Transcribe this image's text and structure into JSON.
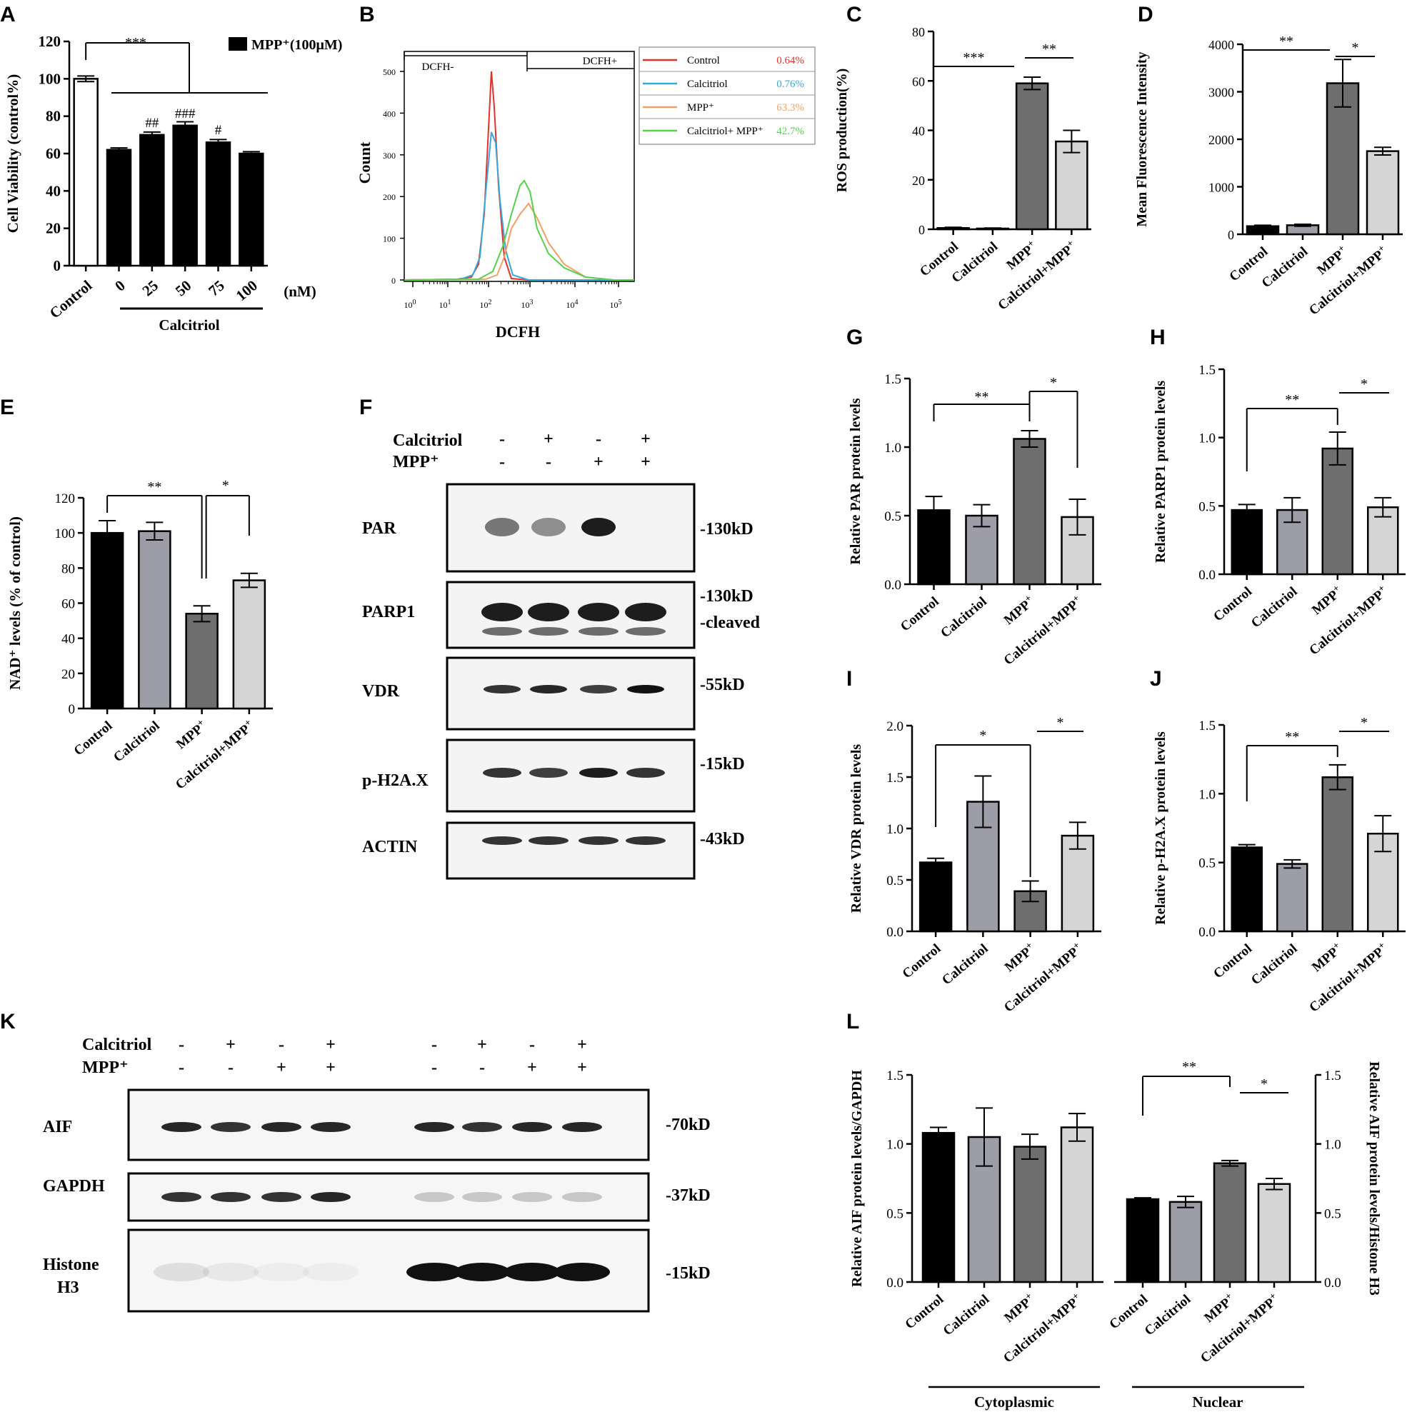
{
  "groups4": [
    "Control",
    "Calcitriol",
    "MPP+",
    "Calcitriol+MPP+"
  ],
  "colors": {
    "control": "#000000",
    "calcitriol": "#9d9da7",
    "mpp": "#6e6e6e",
    "calcitriol_mpp": "#d5d5d5",
    "ctrl_line": "#e8302b",
    "calc_line": "#35a9dc",
    "mpp_line": "#f2a064",
    "cm_line": "#55d24a"
  },
  "panelA": {
    "letter": "A",
    "legend": "MPP⁺(100μM)",
    "ylabel": "Cell Viability (control%)",
    "xgroup_label": "Calcitriol",
    "unit": "(nM)",
    "chart_data": {
      "type": "bar",
      "categories": [
        "Control",
        "0",
        "25",
        "50",
        "75",
        "100"
      ],
      "values": [
        100,
        62,
        70,
        75,
        66,
        60
      ],
      "errors": [
        1.5,
        1,
        1.5,
        2,
        1.5,
        1
      ],
      "ylim": [
        0,
        120
      ],
      "yticks": [
        "0",
        "20",
        "40",
        "60",
        "80",
        "100",
        "120"
      ],
      "annotations": [
        "***",
        "##",
        "###",
        "#"
      ]
    }
  },
  "panelB": {
    "letter": "B",
    "xlabel": "DCFH",
    "ylabel": "Count",
    "gate_neg": "DCFH-",
    "gate_pos": "DCFH+",
    "yticks": [
      "0",
      "100",
      "200",
      "300",
      "400",
      "500"
    ],
    "xticks": [
      "0",
      "1",
      "2",
      "3",
      "4",
      "5"
    ],
    "xtick_base": "10",
    "legend": [
      {
        "name": "Control",
        "pct": "0.64%"
      },
      {
        "name": "Calcitriol",
        "pct": "0.76%"
      },
      {
        "name": "MPP⁺",
        "pct": "63.3%"
      },
      {
        "name": "Calcitriol+ MPP⁺",
        "pct": "42.7%"
      }
    ]
  },
  "panelC": {
    "letter": "C",
    "ylabel": "ROS production(%)",
    "chart_data": {
      "type": "bar",
      "categories": [
        "Control",
        "Calcitriol",
        "MPP+",
        "Calcitriol+MPP+"
      ],
      "values": [
        0.5,
        0.3,
        59,
        35.5
      ],
      "errors": [
        0.3,
        0.2,
        2.5,
        4.5
      ],
      "ylim": [
        0,
        80
      ],
      "yticks": [
        "0",
        "20",
        "40",
        "60",
        "80"
      ],
      "annotations": [
        "***",
        "**"
      ]
    }
  },
  "panelD": {
    "letter": "D",
    "ylabel": "Mean Fluorescence Intensity",
    "chart_data": {
      "type": "bar",
      "categories": [
        "Control",
        "Calcitriol",
        "MPP+",
        "Calcitriol+MPP+"
      ],
      "values": [
        170,
        190,
        3180,
        1750
      ],
      "errors": [
        20,
        20,
        500,
        80
      ],
      "ylim": [
        0,
        4000
      ],
      "yticks": [
        "0",
        "1000",
        "2000",
        "3000",
        "4000"
      ],
      "annotations": [
        "**",
        "*"
      ]
    }
  },
  "panelE": {
    "letter": "E",
    "ylabel": "NAD⁺ levels (% of control)",
    "chart_data": {
      "type": "bar",
      "categories": [
        "Control",
        "Calcitriol",
        "MPP+",
        "Calcitriol+MPP+"
      ],
      "values": [
        100,
        101,
        54,
        73
      ],
      "errors": [
        7,
        5,
        4.5,
        4
      ],
      "ylim": [
        0,
        120
      ],
      "yticks": [
        "0",
        "20",
        "40",
        "60",
        "80",
        "100",
        "120"
      ],
      "annotations": [
        "**",
        "*"
      ]
    }
  },
  "panelF": {
    "letter": "F",
    "row_calcitriol": "Calcitriol",
    "row_mpp": "MPP⁺",
    "calcitriol_signs": [
      "-",
      "+",
      "-",
      "+"
    ],
    "mpp_signs": [
      "-",
      "-",
      "+",
      "+"
    ],
    "blots": [
      {
        "name": "PAR",
        "sizes": [
          "-130kD"
        ]
      },
      {
        "name": "PARP1",
        "sizes": [
          "-130kD",
          "-cleaved"
        ]
      },
      {
        "name": "VDR",
        "sizes": [
          "-55kD"
        ]
      },
      {
        "name": "p-H2A.X",
        "sizes": [
          "-15kD"
        ]
      },
      {
        "name": "ACTIN",
        "sizes": [
          "-43kD"
        ]
      }
    ]
  },
  "panelG": {
    "letter": "G",
    "ylabel": "Relative PAR protein levels",
    "chart_data": {
      "type": "bar",
      "categories": [
        "Control",
        "Calcitriol",
        "MPP+",
        "Calcitriol+MPP+"
      ],
      "values": [
        0.54,
        0.5,
        1.06,
        0.49
      ],
      "errors": [
        0.1,
        0.08,
        0.06,
        0.13
      ],
      "ylim": [
        0,
        1.5
      ],
      "yticks": [
        "0.0",
        "0.5",
        "1.0",
        "1.5"
      ],
      "annotations": [
        "**",
        "*"
      ]
    }
  },
  "panelH": {
    "letter": "H",
    "ylabel": "Relative PARP1 protein levels",
    "chart_data": {
      "type": "bar",
      "categories": [
        "Control",
        "Calcitriol",
        "MPP+",
        "Calcitriol+MPP+"
      ],
      "values": [
        0.47,
        0.47,
        0.92,
        0.49
      ],
      "errors": [
        0.04,
        0.09,
        0.12,
        0.07
      ],
      "ylim": [
        0,
        1.5
      ],
      "yticks": [
        "0.0",
        "0.5",
        "1.0",
        "1.5"
      ],
      "annotations": [
        "**",
        "*"
      ]
    }
  },
  "panelI": {
    "letter": "I",
    "ylabel": "Relative VDR protein levels",
    "chart_data": {
      "type": "bar",
      "categories": [
        "Control",
        "Calcitriol",
        "MPP+",
        "Calcitriol+MPP+"
      ],
      "values": [
        0.67,
        1.26,
        0.39,
        0.93
      ],
      "errors": [
        0.04,
        0.25,
        0.1,
        0.13
      ],
      "ylim": [
        0,
        2.0
      ],
      "yticks": [
        "0.0",
        "0.5",
        "1.0",
        "1.5",
        "2.0"
      ],
      "annotations": [
        "*",
        "*"
      ]
    }
  },
  "panelJ": {
    "letter": "J",
    "ylabel": "Relative p-H2A.X protein levels",
    "chart_data": {
      "type": "bar",
      "categories": [
        "Control",
        "Calcitriol",
        "MPP+",
        "Calcitriol+MPP+"
      ],
      "values": [
        0.61,
        0.49,
        1.12,
        0.71
      ],
      "errors": [
        0.02,
        0.03,
        0.09,
        0.13
      ],
      "ylim": [
        0,
        1.5
      ],
      "yticks": [
        "0.0",
        "0.5",
        "1.0",
        "1.5"
      ],
      "annotations": [
        "**",
        "*"
      ]
    }
  },
  "panelK": {
    "letter": "K",
    "row_calcitriol": "Calcitriol",
    "row_mpp": "MPP⁺",
    "calcitriol_signs": [
      "-",
      "+",
      "-",
      "+",
      "-",
      "+",
      "-",
      "+"
    ],
    "mpp_signs": [
      "-",
      "-",
      "+",
      "+",
      "-",
      "-",
      "+",
      "+"
    ],
    "blots": [
      {
        "name": "AIF",
        "sizes": [
          "-70kD"
        ]
      },
      {
        "name": "GAPDH",
        "sizes": [
          "-37kD"
        ]
      },
      {
        "name": "Histone H3",
        "sizes": [
          "-15kD"
        ]
      }
    ]
  },
  "panelL": {
    "letter": "L",
    "ylabel_left": "Relative AIF protein levels/GAPDH",
    "ylabel_right": "Relative AIF protein levels/Histone H3",
    "group_cyto": "Cytoplasmic",
    "group_nuc": "Nuclear",
    "chart_data": [
      {
        "type": "bar",
        "name": "Cytoplasmic",
        "categories": [
          "Control",
          "Calcitriol",
          "MPP+",
          "Calcitriol+MPP+"
        ],
        "values": [
          1.08,
          1.05,
          0.98,
          1.12
        ],
        "errors": [
          0.04,
          0.21,
          0.09,
          0.1
        ],
        "ylim": [
          0,
          1.5
        ],
        "yticks": [
          "0.0",
          "0.5",
          "1.0",
          "1.5"
        ]
      },
      {
        "type": "bar",
        "name": "Nuclear",
        "categories": [
          "Control",
          "Calcitriol",
          "MPP+",
          "Calcitriol+MPP+"
        ],
        "values": [
          0.6,
          0.58,
          0.86,
          0.71
        ],
        "errors": [
          0.01,
          0.04,
          0.02,
          0.04
        ],
        "ylim": [
          0,
          1.5
        ],
        "yticks": [
          "0.0",
          "0.5",
          "1.0",
          "1.5"
        ],
        "annotations": [
          "**",
          "*"
        ]
      }
    ]
  }
}
